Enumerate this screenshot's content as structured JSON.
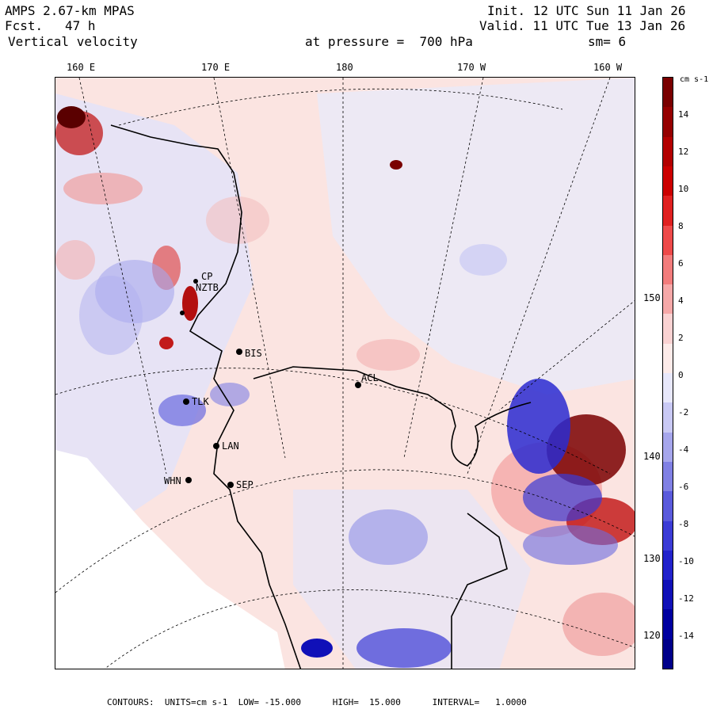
{
  "header": {
    "model": "AMPS 2.67-km MPAS",
    "fcst_label": "Fcst.",
    "fcst_value": "47 h",
    "field": "Vertical velocity",
    "init": "Init. 12 UTC Sun 11 Jan 26",
    "valid": "Valid. 11 UTC Tue 13 Jan 26",
    "pressure": "at pressure =  700 hPa",
    "smooth": "sm= 6"
  },
  "lon_labels": [
    "160 E",
    "170 E",
    "180",
    "170 W",
    "160 W"
  ],
  "lat_labels": [
    "150 W",
    "140 W",
    "130 W",
    "120 W"
  ],
  "stations": [
    {
      "id": "NZTB"
    },
    {
      "id": "CP"
    },
    {
      "id": "BIS"
    },
    {
      "id": "ACL"
    },
    {
      "id": "LAN"
    },
    {
      "id": "SEP"
    },
    {
      "id": "WHN"
    },
    {
      "id": "TLK"
    }
  ],
  "colorbar": {
    "units": "cm s-1",
    "levels": [
      "14",
      "12",
      "10",
      "8",
      "6",
      "4",
      "2",
      "0",
      "-2",
      "-4",
      "-6",
      "-8",
      "-10",
      "-12",
      "-14"
    ],
    "colors": [
      "#7a0000",
      "#950000",
      "#b30000",
      "#cc0000",
      "#e02020",
      "#ee4a4a",
      "#f27c7c",
      "#f6a8a8",
      "#fad2d2",
      "#fdebe9",
      "#e8e8fb",
      "#c9c9f4",
      "#a6a6ec",
      "#8080e4",
      "#5a5adc",
      "#3b3bd6",
      "#2222cc",
      "#1010b8",
      "#0000a0",
      "#00008a"
    ]
  },
  "footer": {
    "text": "CONTOURS:  UNITS=cm s-1  LOW= -15.000      HIGH=  15.000      INTERVAL=   1.0000"
  }
}
